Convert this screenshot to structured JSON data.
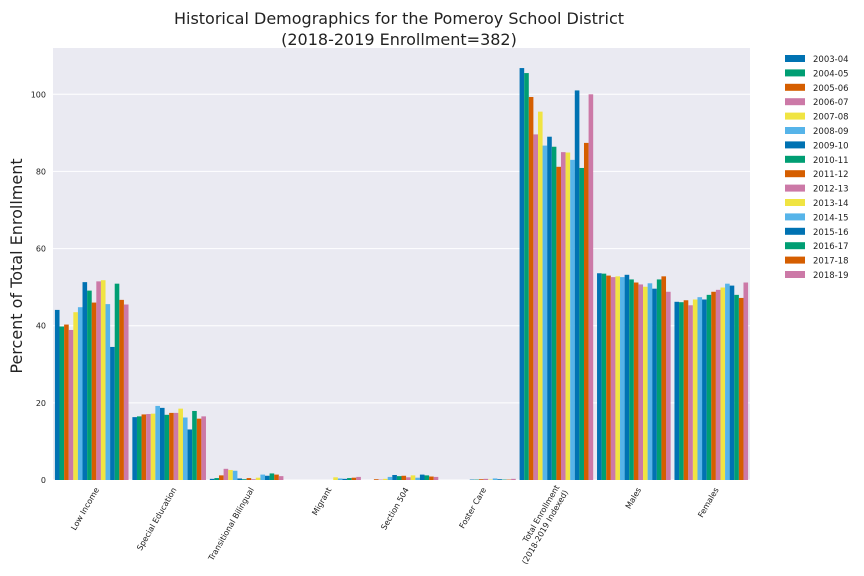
{
  "chart_data": {
    "type": "bar",
    "title": "Historical Demographics for the Pomeroy School District",
    "subtitle": "(2018-2019 Enrollment=382)",
    "xlabel": "",
    "ylabel": "Percent of Total Enrollment",
    "ylim": [
      0,
      112
    ],
    "yticks": [
      0,
      20,
      40,
      60,
      80,
      100
    ],
    "grid": true,
    "legend_position": "outside-right",
    "categories": [
      "Low Income",
      "Special Education",
      "Transitional Bilingual",
      "Migrant",
      "Section 504",
      "Foster Care",
      "Total Enrollment\n(2018-2019 Indexed)",
      "Males",
      "Females"
    ],
    "series": [
      {
        "name": "2003-04",
        "color": "#0072b2",
        "values": [
          44.1,
          16.3,
          0.3,
          0,
          0,
          0,
          106.8,
          53.6,
          46.2
        ]
      },
      {
        "name": "2004-05",
        "color": "#009e73",
        "values": [
          39.8,
          16.5,
          0.5,
          0,
          0,
          0,
          105.5,
          53.5,
          46.1
        ]
      },
      {
        "name": "2005-06",
        "color": "#d55e00",
        "values": [
          40.3,
          17.0,
          1.2,
          0,
          0.2,
          0,
          99.3,
          53.0,
          46.6
        ]
      },
      {
        "name": "2006-07",
        "color": "#cc79a7",
        "values": [
          38.9,
          17.1,
          2.9,
          0,
          0.1,
          0,
          89.6,
          52.6,
          45.3
        ]
      },
      {
        "name": "2007-08",
        "color": "#f0e442",
        "values": [
          43.5,
          17.2,
          2.6,
          0,
          0.3,
          0,
          95.5,
          52.8,
          46.8
        ]
      },
      {
        "name": "2008-09",
        "color": "#56b4e9",
        "values": [
          44.8,
          19.2,
          2.4,
          0,
          0.8,
          0,
          86.7,
          52.6,
          47.4
        ]
      },
      {
        "name": "2009-10",
        "color": "#0072b2",
        "values": [
          51.3,
          18.7,
          0.4,
          0,
          1.3,
          0.1,
          89.0,
          53.2,
          46.8
        ]
      },
      {
        "name": "2010-11",
        "color": "#009e73",
        "values": [
          49.1,
          16.9,
          0.2,
          0,
          1.0,
          0.1,
          86.4,
          52.0,
          48.0
        ]
      },
      {
        "name": "2011-12",
        "color": "#d55e00",
        "values": [
          46.0,
          17.4,
          0.5,
          0,
          1.1,
          0.2,
          81.2,
          51.2,
          48.8
        ]
      },
      {
        "name": "2012-13",
        "color": "#cc79a7",
        "values": [
          51.5,
          17.4,
          0.2,
          0,
          0.7,
          0.3,
          85.0,
          50.7,
          49.3
        ]
      },
      {
        "name": "2013-14",
        "color": "#f0e442",
        "values": [
          51.8,
          18.5,
          0.6,
          0.7,
          1.2,
          0.1,
          84.9,
          50.1,
          49.9
        ]
      },
      {
        "name": "2014-15",
        "color": "#56b4e9",
        "values": [
          45.6,
          16.2,
          1.4,
          0.4,
          0.6,
          0.4,
          83.0,
          51.0,
          50.9
        ]
      },
      {
        "name": "2015-16",
        "color": "#0072b2",
        "values": [
          34.5,
          13.1,
          1.1,
          0.3,
          1.4,
          0.2,
          101.0,
          49.6,
          50.4
        ]
      },
      {
        "name": "2016-17",
        "color": "#009e73",
        "values": [
          50.9,
          17.9,
          1.7,
          0.5,
          1.2,
          0.1,
          80.9,
          52.0,
          48.0
        ]
      },
      {
        "name": "2017-18",
        "color": "#d55e00",
        "values": [
          46.7,
          15.9,
          1.4,
          0.6,
          0.9,
          0.1,
          87.4,
          52.8,
          47.2
        ]
      },
      {
        "name": "2018-19",
        "color": "#cc79a7",
        "values": [
          45.5,
          16.5,
          1.0,
          0.8,
          0.8,
          0.3,
          100.0,
          48.8,
          51.2
        ]
      }
    ]
  }
}
